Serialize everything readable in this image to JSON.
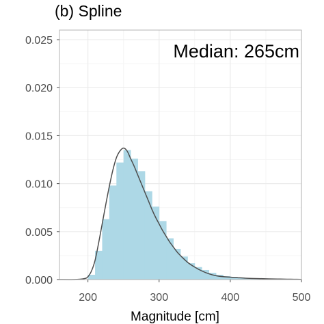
{
  "chart_data": {
    "type": "histogram",
    "title": "(b) Spline",
    "annotation": "Median: 265cm",
    "xlabel": "Magnitude [cm]",
    "ylabel": "",
    "xlim": [
      160,
      500
    ],
    "ylim": [
      0,
      0.026
    ],
    "x_ticks": [
      200,
      300,
      400,
      500
    ],
    "x_tick_labels": [
      "200",
      "300",
      "400",
      "500"
    ],
    "y_ticks": [
      0,
      0.005,
      0.01,
      0.015,
      0.02,
      0.025
    ],
    "y_tick_labels": [
      "0.000",
      "0.005",
      "0.010",
      "0.015",
      "0.020",
      "0.025"
    ],
    "grid": true,
    "bin_width": 10,
    "histogram_bins": [
      {
        "start": 200,
        "density": 0.0005
      },
      {
        "start": 210,
        "density": 0.003
      },
      {
        "start": 220,
        "density": 0.0063
      },
      {
        "start": 230,
        "density": 0.0098
      },
      {
        "start": 240,
        "density": 0.0122
      },
      {
        "start": 250,
        "density": 0.0135
      },
      {
        "start": 260,
        "density": 0.0126
      },
      {
        "start": 270,
        "density": 0.0113
      },
      {
        "start": 280,
        "density": 0.0092
      },
      {
        "start": 290,
        "density": 0.0076
      },
      {
        "start": 300,
        "density": 0.0061
      },
      {
        "start": 310,
        "density": 0.0043
      },
      {
        "start": 320,
        "density": 0.0032
      },
      {
        "start": 330,
        "density": 0.0024
      },
      {
        "start": 340,
        "density": 0.0017
      },
      {
        "start": 350,
        "density": 0.0013
      },
      {
        "start": 360,
        "density": 0.001
      },
      {
        "start": 370,
        "density": 0.0007
      },
      {
        "start": 380,
        "density": 0.0005
      },
      {
        "start": 390,
        "density": 0.00035
      },
      {
        "start": 400,
        "density": 0.00028
      },
      {
        "start": 410,
        "density": 0.00022
      },
      {
        "start": 420,
        "density": 0.00016
      },
      {
        "start": 430,
        "density": 0.00012
      },
      {
        "start": 440,
        "density": 9e-05
      },
      {
        "start": 450,
        "density": 7e-05
      },
      {
        "start": 460,
        "density": 5e-05
      },
      {
        "start": 470,
        "density": 4e-05
      },
      {
        "start": 480,
        "density": 3e-05
      },
      {
        "start": 490,
        "density": 2e-05
      }
    ],
    "density_curve": {
      "x": [
        160,
        180,
        195,
        200,
        205,
        210,
        215,
        220,
        225,
        230,
        235,
        240,
        245,
        250,
        255,
        260,
        265,
        270,
        275,
        280,
        285,
        290,
        295,
        300,
        305,
        310,
        315,
        320,
        325,
        330,
        340,
        350,
        360,
        370,
        380,
        390,
        400,
        410,
        420,
        430,
        440,
        450,
        460,
        470,
        480,
        490,
        500
      ],
      "y": [
        0.0,
        0.0,
        0.0001,
        0.0003,
        0.0009,
        0.002,
        0.0038,
        0.0058,
        0.0078,
        0.0097,
        0.0114,
        0.0127,
        0.0134,
        0.0137,
        0.0134,
        0.0126,
        0.0118,
        0.0109,
        0.01,
        0.0091,
        0.0082,
        0.0073,
        0.0065,
        0.0058,
        0.0051,
        0.0045,
        0.0039,
        0.0034,
        0.0029,
        0.0025,
        0.0018,
        0.0013,
        0.0009,
        0.0006,
        0.0004,
        0.0003,
        0.00025,
        0.0002,
        0.00015,
        0.00012,
        0.0001,
        8e-05,
        6e-05,
        5e-05,
        4e-05,
        3e-05,
        2e-05
      ]
    },
    "colors": {
      "bar_fill": "#add8e6",
      "curve": "#4d4d4d",
      "grid_major": "#ebebeb",
      "grid_minor": "#f5f5f5",
      "panel_border": "#b3b3b3",
      "axis_text": "#4d4d4d"
    }
  }
}
